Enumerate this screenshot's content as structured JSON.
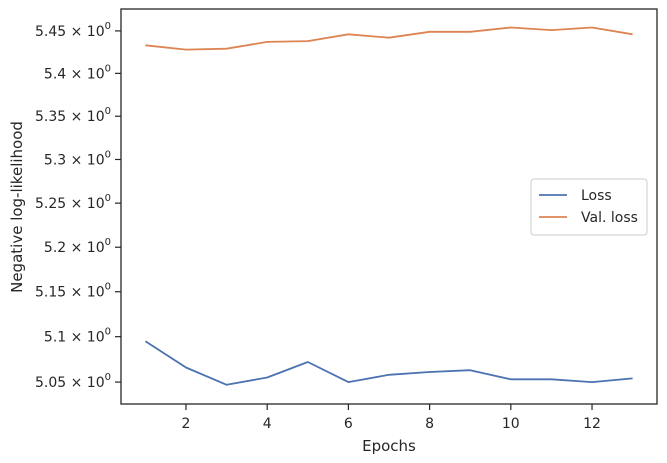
{
  "chart_data": {
    "type": "line",
    "title": "",
    "xlabel": "Epochs",
    "ylabel": "Negative log-likelihood",
    "xlim": [
      0.4,
      13.6
    ],
    "ylim": [
      5.026,
      5.476
    ],
    "x_ticks": [
      2,
      4,
      6,
      8,
      10,
      12
    ],
    "x_tick_labels": [
      "2",
      "4",
      "6",
      "8",
      "10",
      "12"
    ],
    "y_ticks": [
      5.05,
      5.1,
      5.15,
      5.2,
      5.25,
      5.3,
      5.35,
      5.4,
      5.45
    ],
    "y_tick_labels": [
      {
        "mantissa": "5.05",
        "times": "×",
        "base": "10",
        "exp": "0"
      },
      {
        "mantissa": "5.1",
        "times": "×",
        "base": "10",
        "exp": "0"
      },
      {
        "mantissa": "5.15",
        "times": "×",
        "base": "10",
        "exp": "0"
      },
      {
        "mantissa": "5.2",
        "times": "×",
        "base": "10",
        "exp": "0"
      },
      {
        "mantissa": "5.25",
        "times": "×",
        "base": "10",
        "exp": "0"
      },
      {
        "mantissa": "5.3",
        "times": "×",
        "base": "10",
        "exp": "0"
      },
      {
        "mantissa": "5.35",
        "times": "×",
        "base": "10",
        "exp": "0"
      },
      {
        "mantissa": "5.4",
        "times": "×",
        "base": "10",
        "exp": "0"
      },
      {
        "mantissa": "5.45",
        "times": "×",
        "base": "10",
        "exp": "0"
      }
    ],
    "y_scale": "log",
    "grid": false,
    "legend_position": "center-right",
    "x": [
      1,
      2,
      3,
      4,
      5,
      6,
      7,
      8,
      9,
      10,
      11,
      12,
      13
    ],
    "series": [
      {
        "name": "Loss",
        "color": "#4c72b0",
        "values": [
          5.095,
          5.066,
          5.047,
          5.055,
          5.072,
          5.05,
          5.058,
          5.061,
          5.063,
          5.053,
          5.053,
          5.05,
          5.054
        ]
      },
      {
        "name": "Val. loss",
        "color": "#dd8452",
        "values": [
          5.433,
          5.428,
          5.429,
          5.437,
          5.438,
          5.446,
          5.442,
          5.449,
          5.449,
          5.454,
          5.451,
          5.454,
          5.446
        ]
      }
    ]
  }
}
